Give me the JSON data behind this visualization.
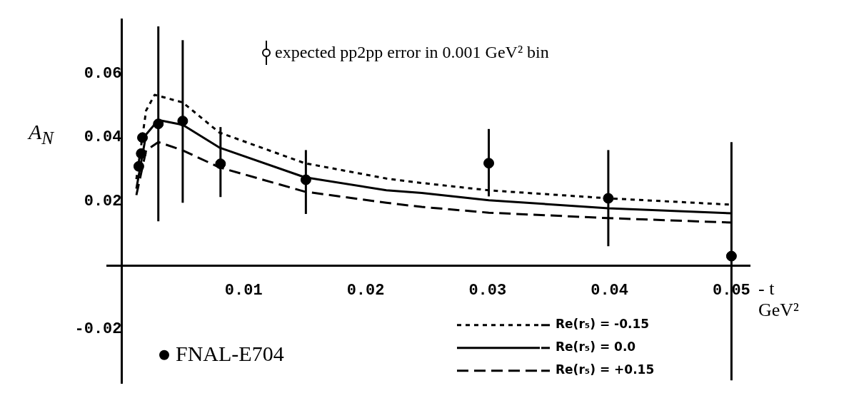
{
  "chart_data": {
    "type": "scatter",
    "xlabel": "- t GeV²",
    "ylabel": "A$_{N}$",
    "annotations": [
      "expected pp2pp error in 0.001 GeV² bin"
    ],
    "xlim": [
      -0.0012,
      0.0515
    ],
    "ylim": [
      -0.037,
      0.077
    ],
    "xticks": [
      0.01,
      0.02,
      0.03,
      0.04,
      0.05
    ],
    "yticks": [
      -0.02,
      0.02,
      0.04,
      0.06
    ],
    "legend": "bottom",
    "grid": false,
    "series": [
      {
        "name": "FNAL-E704",
        "type": "scatter",
        "color": "#000000",
        "marker": "circle",
        "x": [
          0.0014,
          0.0016,
          0.0017,
          0.003,
          0.005,
          0.0081,
          0.0151,
          0.0301,
          0.0399,
          0.05
        ],
        "values": [
          0.031,
          0.035,
          0.04,
          0.0443,
          0.0452,
          0.0318,
          0.0268,
          0.032,
          0.021,
          0.0029
        ],
        "errors": [
          null,
          null,
          null,
          [
            0.0138,
            0.0748
          ],
          [
            0.0196,
            0.0705
          ],
          [
            0.0214,
            0.0433
          ],
          [
            0.0161,
            0.0361
          ],
          [
            0.0216,
            0.0427
          ],
          [
            0.006,
            0.0361
          ],
          [
            -0.036,
            0.0386
          ]
        ]
      },
      {
        "name": "Re(r₅) = -0.15",
        "type": "line",
        "color": "#000000",
        "marker": "none",
        "line_style": "dotted",
        "x": [
          0.0012,
          0.002,
          0.0027,
          0.005,
          0.008,
          0.015,
          0.0217,
          0.0246,
          0.0301,
          0.0399,
          0.05
        ],
        "values": [
          0.027,
          0.0485,
          0.0534,
          0.051,
          0.0416,
          0.032,
          0.0272,
          0.0258,
          0.0235,
          0.021,
          0.019
        ]
      },
      {
        "name": "Re(r₅) = 0.0",
        "type": "line",
        "color": "#000000",
        "marker": "none",
        "line_style": "solid",
        "x": [
          0.0012,
          0.002,
          0.003,
          0.005,
          0.008,
          0.015,
          0.0217,
          0.0246,
          0.0301,
          0.0399,
          0.05
        ],
        "values": [
          0.024,
          0.041,
          0.0455,
          0.044,
          0.0369,
          0.0276,
          0.0235,
          0.0227,
          0.0204,
          0.0179,
          0.0163
        ]
      },
      {
        "name": "Re(r₅) = +0.15",
        "type": "line",
        "color": "#000000",
        "marker": "none",
        "line_style": "dashed",
        "x": [
          0.0012,
          0.002,
          0.003,
          0.005,
          0.008,
          0.015,
          0.0217,
          0.0246,
          0.0301,
          0.0399,
          0.05
        ],
        "values": [
          0.022,
          0.036,
          0.0386,
          0.036,
          0.0307,
          0.0231,
          0.0196,
          0.0183,
          0.0165,
          0.0148,
          0.0134
        ]
      }
    ]
  }
}
